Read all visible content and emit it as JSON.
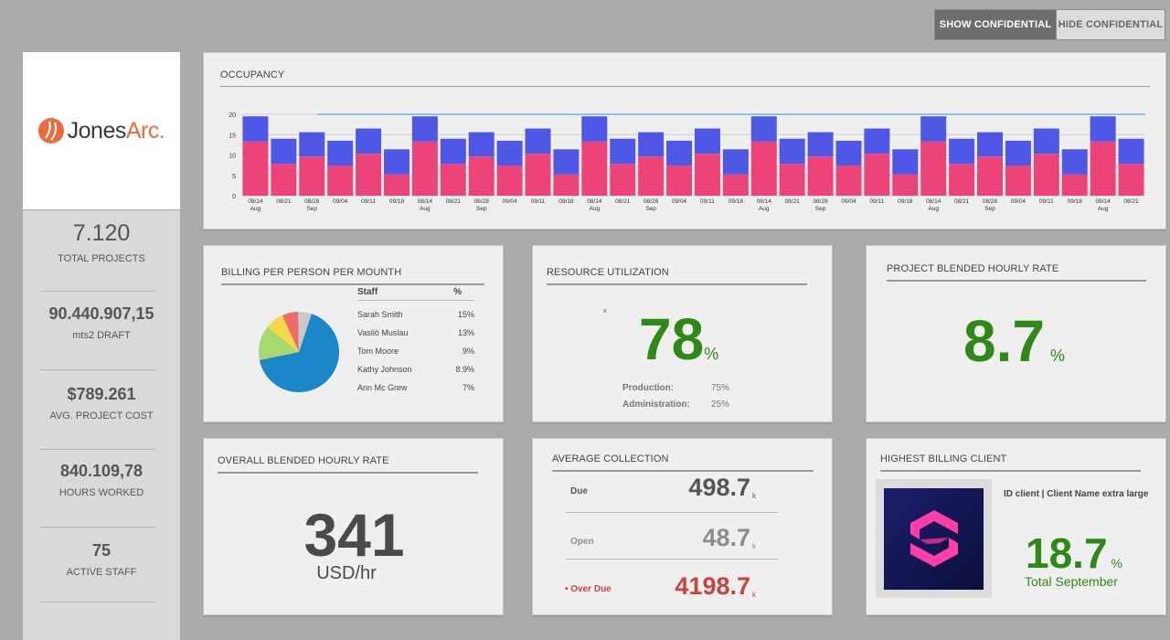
{
  "toggle": {
    "show_label": "SHOW CONFIDENTIAL",
    "hide_label": "HIDE CONFIDENTIAL"
  },
  "logo": {
    "word1": "Jones",
    "word2": "Arc."
  },
  "sidebar": {
    "stats": [
      {
        "value": "7.120",
        "label": "TOTAL PROJECTS"
      },
      {
        "value": "90.440.907,15",
        "label": "mts2 DRAFT"
      },
      {
        "value": "$789.261",
        "label": "AVG. PROJECT COST"
      },
      {
        "value": "840.109,78",
        "label": "HOURS WORKED"
      },
      {
        "value": "75",
        "label": "ACTIVE STAFF"
      }
    ]
  },
  "occupancy": {
    "title": "OCCUPANCY",
    "colors": {
      "top": "#4f58e6",
      "bottom": "#ec4479",
      "line": "#58a6e0"
    }
  },
  "chart_data": {
    "type": "bar",
    "title": "OCCUPANCY",
    "stacked": true,
    "categories": [
      "08/14\nAug",
      "08/21",
      "08/28\nSep",
      "09/04",
      "09/11",
      "09/18",
      "08/14\nAug",
      "08/21",
      "08/28\nSep",
      "09/04",
      "09/11",
      "09/18",
      "08/14\nAug",
      "08/21",
      "08/28\nSep",
      "09/04",
      "09/11",
      "09/18",
      "08/14\nAug",
      "08/21",
      "08/28\nSep",
      "09/04",
      "09/11",
      "09/18",
      "08/14\nAug",
      "08/21",
      "08/28\nSep",
      "09/04",
      "09/11",
      "09/18",
      "08/14\nAug",
      "08/21"
    ],
    "series": [
      {
        "values": [
          13.3,
          7.8,
          9.6,
          7.4,
          10.3,
          5.2,
          13.3,
          7.8,
          9.6,
          7.4,
          10.3,
          5.2,
          13.3,
          7.8,
          9.6,
          7.4,
          10.3,
          5.2,
          13.3,
          7.8,
          9.6,
          7.4,
          10.3,
          5.2,
          13.3,
          7.8,
          9.6,
          7.4,
          10.3,
          5.2,
          13.3,
          7.8
        ]
      },
      {
        "values": [
          6.2,
          6.2,
          6.0,
          6.1,
          6.2,
          6.2,
          6.2,
          6.2,
          6.0,
          6.1,
          6.2,
          6.2,
          6.2,
          6.2,
          6.0,
          6.1,
          6.2,
          6.2,
          6.2,
          6.2,
          6.0,
          6.1,
          6.2,
          6.2,
          6.2,
          6.2,
          6.0,
          6.1,
          6.2,
          6.2,
          6.2,
          6.2
        ]
      }
    ],
    "reference_line": {
      "value": 20
    },
    "ylim": [
      0,
      20
    ],
    "yticks": [
      0,
      5,
      10,
      15,
      20
    ],
    "grid": true
  },
  "billing": {
    "title": "BILLING PER PERSON PER MOUNTH",
    "col_staff": "Staff",
    "col_pct": "%",
    "rows": [
      {
        "name": "Sarah Smith",
        "pct": "15%"
      },
      {
        "name": "Vasliö Muslau",
        "pct": "13%"
      },
      {
        "name": "Tom Moore",
        "pct": "9%"
      },
      {
        "name": "Kathy Johnson",
        "pct": "8.9%"
      },
      {
        "name": "Ann Mc Grew",
        "pct": "7%"
      }
    ],
    "pie": [
      {
        "value": 62,
        "color": "#1a87c9"
      },
      {
        "value": 13,
        "color": "#a8d970"
      },
      {
        "value": 7,
        "color": "#f6d84a"
      },
      {
        "value": 6,
        "color": "#ef6a6a"
      },
      {
        "value": 5,
        "color": "#c9c9c9"
      }
    ]
  },
  "resource": {
    "title": "RESOURCE UTILIZATION",
    "value": "78",
    "unit": "%",
    "items": [
      {
        "label": "Production:",
        "value": "75%"
      },
      {
        "label": "Administration:",
        "value": "25%"
      }
    ]
  },
  "project_rate": {
    "title": "PROJECT BLENDED HOURLY RATE",
    "value": "8.7",
    "unit": "%"
  },
  "overall_rate": {
    "title": "OVERALL BLENDED HOURLY RATE",
    "value": "341",
    "unit": "USD/hr"
  },
  "collection": {
    "title": "AVERAGE COLLECTION",
    "rows": [
      {
        "label": "Due",
        "value": "498.7",
        "suffix": "k",
        "color": "#555555",
        "label_color": "#555555"
      },
      {
        "label": "Open",
        "value": "48.7",
        "suffix": "k",
        "color": "#8d8d8d",
        "label_color": "#8d8d8d"
      },
      {
        "label": "• Over Due",
        "value": "4198.7",
        "suffix": "k",
        "color": "#c8443f",
        "label_color": "#c8443f"
      }
    ]
  },
  "client": {
    "title": "HIGHEST BILLING CLIENT",
    "name": "ID client | Client Name extra large",
    "value": "18.7",
    "unit": "%",
    "caption": "Total September",
    "logo_colors": {
      "bg": "#10133f",
      "mark": "#ff3ea8"
    }
  }
}
